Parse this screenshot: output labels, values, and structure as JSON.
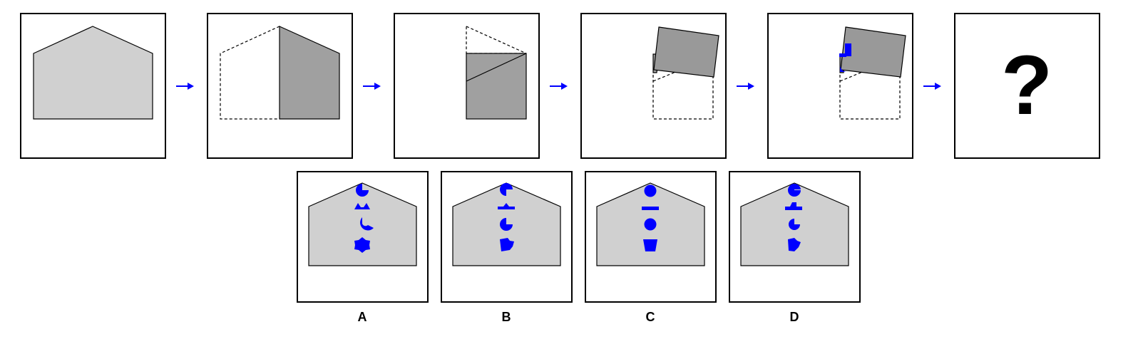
{
  "puzzle": {
    "question_mark": "?",
    "options": [
      {
        "label": "A"
      },
      {
        "label": "B"
      },
      {
        "label": "C"
      },
      {
        "label": "D"
      }
    ]
  },
  "colors": {
    "paper_fill": "#d0d0d0",
    "folded_fill": "#a0a0a0",
    "folded_fill_dark": "#999999",
    "punch_color": "#0000ff",
    "arrow_color": "#0000ff",
    "frame_stroke": "#000000",
    "background": "#ffffff"
  }
}
